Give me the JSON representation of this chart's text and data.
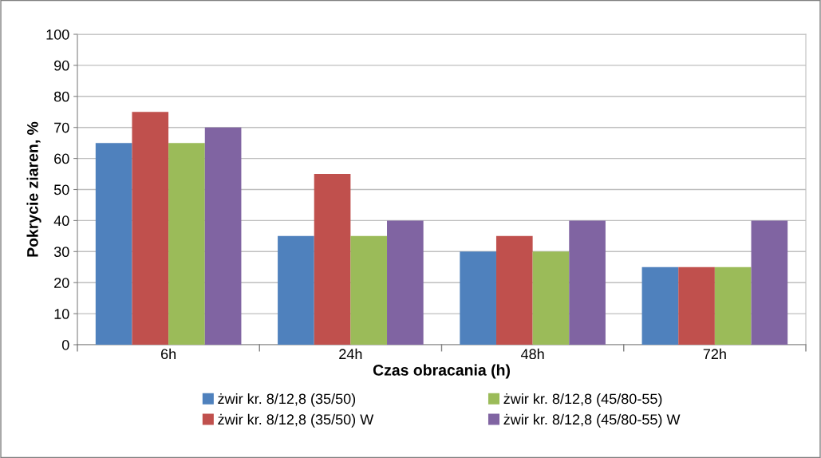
{
  "chart_data": {
    "type": "bar",
    "xlabel": "Czas obracania (h)",
    "ylabel": "Pokrycie ziaren, %",
    "categories": [
      "6h",
      "24h",
      "48h",
      "72h"
    ],
    "series": [
      {
        "name": "żwir kr. 8/12,8 (35/50)",
        "color": "#4f81bd",
        "values": [
          65,
          35,
          30,
          25
        ]
      },
      {
        "name": "żwir kr. 8/12,8 (35/50) W",
        "color": "#c0504d",
        "values": [
          75,
          55,
          35,
          25
        ]
      },
      {
        "name": "żwir kr. 8/12,8 (45/80-55)",
        "color": "#9bbb59",
        "values": [
          65,
          35,
          30,
          25
        ]
      },
      {
        "name": "żwir kr. 8/12,8 (45/80-55) W",
        "color": "#8064a2",
        "values": [
          70,
          40,
          40,
          40
        ]
      }
    ],
    "ylim": [
      0,
      100
    ],
    "yticks": [
      0,
      10,
      20,
      30,
      40,
      50,
      60,
      70,
      80,
      90,
      100
    ],
    "grid": "y",
    "legend": "bottom"
  }
}
